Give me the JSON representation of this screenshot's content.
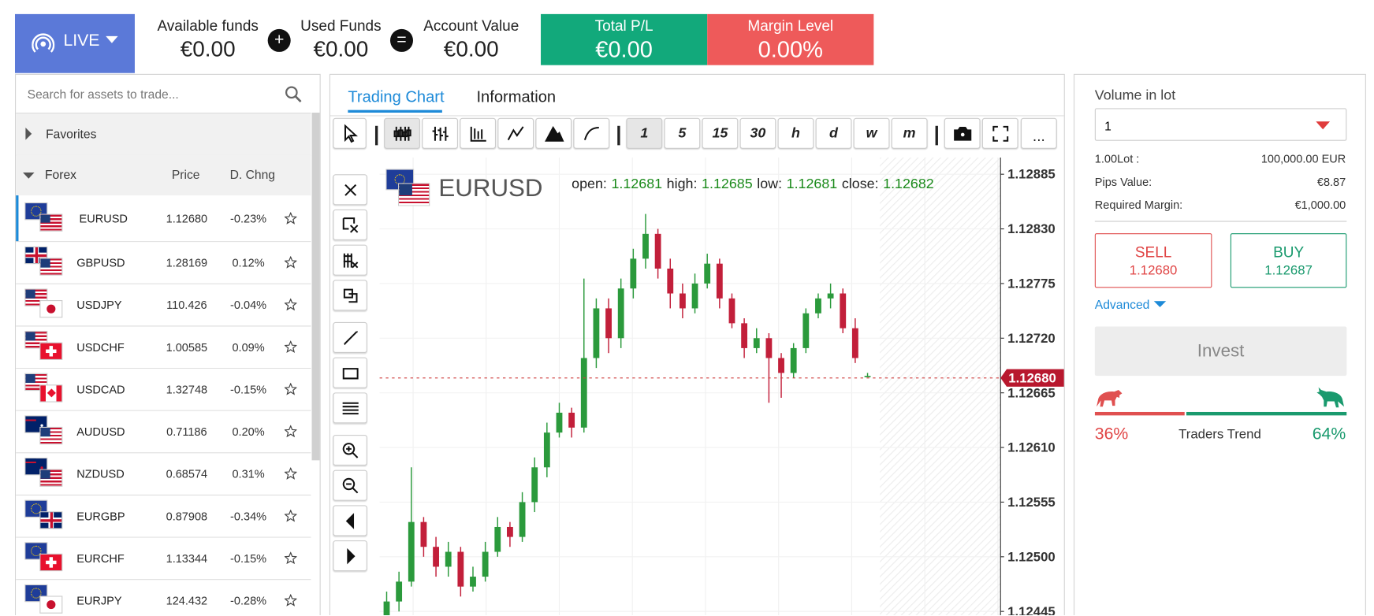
{
  "header": {
    "mode": "LIVE",
    "available_funds": {
      "label": "Available funds",
      "value": "€0.00"
    },
    "plus": "+",
    "used_funds": {
      "label": "Used Funds",
      "value": "€0.00"
    },
    "equals": "=",
    "account_value": {
      "label": "Account Value",
      "value": "€0.00"
    },
    "total_pl": {
      "label": "Total P/L",
      "value": "€0.00"
    },
    "margin_level": {
      "label": "Margin Level",
      "value": "0.00%"
    }
  },
  "sidebar": {
    "search_placeholder": "Search for assets to trade...",
    "favorites": "Favorites",
    "group": {
      "label": "Forex",
      "columns": [
        "Price",
        "D. Chng"
      ]
    },
    "assets": [
      {
        "symbol": "EURUSD",
        "price": "1.12680",
        "change": "-0.23%"
      },
      {
        "symbol": "GBPUSD",
        "price": "1.28169",
        "change": "0.12%"
      },
      {
        "symbol": "USDJPY",
        "price": "110.426",
        "change": "-0.04%"
      },
      {
        "symbol": "USDCHF",
        "price": "1.00585",
        "change": "0.09%"
      },
      {
        "symbol": "USDCAD",
        "price": "1.32748",
        "change": "-0.15%"
      },
      {
        "symbol": "AUDUSD",
        "price": "0.71186",
        "change": "0.20%"
      },
      {
        "symbol": "NZDUSD",
        "price": "0.68574",
        "change": "0.31%"
      },
      {
        "symbol": "EURGBP",
        "price": "0.87908",
        "change": "-0.34%"
      },
      {
        "symbol": "EURCHF",
        "price": "1.13344",
        "change": "-0.15%"
      },
      {
        "symbol": "EURJPY",
        "price": "124.432",
        "change": "-0.28%"
      }
    ]
  },
  "chart_panel": {
    "tabs": [
      "Trading Chart",
      "Information"
    ],
    "timeframes": [
      "1",
      "5",
      "15",
      "30",
      "h",
      "d",
      "w",
      "m"
    ],
    "more": "...",
    "symbol": "EURUSD",
    "ohlc_labels": [
      "open:",
      "high:",
      "low:",
      "close:"
    ]
  },
  "chart_data": {
    "type": "candlestick",
    "open": [
      1.1244,
      1.12455,
      1.12475,
      1.12535,
      1.1251,
      1.1249,
      1.12505,
      1.1247,
      1.1248,
      1.12505,
      1.1253,
      1.1252,
      1.12555,
      1.1259,
      1.12625,
      1.12645,
      1.1263,
      1.127,
      1.1275,
      1.1272,
      1.1277,
      1.128,
      1.12825,
      1.1279,
      1.12765,
      1.1275,
      1.12775,
      1.12795,
      1.1276,
      1.12735,
      1.1271,
      1.1272,
      1.127,
      1.12685,
      1.1271,
      1.12745,
      1.1276,
      1.12765,
      1.1273,
      1.12681
    ],
    "high": [
      1.12465,
      1.12485,
      1.1259,
      1.1254,
      1.1252,
      1.12515,
      1.1251,
      1.1249,
      1.12515,
      1.1254,
      1.12535,
      1.12565,
      1.126,
      1.12635,
      1.12655,
      1.1265,
      1.1278,
      1.1276,
      1.1276,
      1.1278,
      1.1281,
      1.12845,
      1.1283,
      1.128,
      1.12775,
      1.12785,
      1.12805,
      1.128,
      1.12765,
      1.1274,
      1.1273,
      1.12725,
      1.12705,
      1.12715,
      1.1275,
      1.12765,
      1.12775,
      1.1277,
      1.1274,
      1.12685
    ],
    "low": [
      1.12435,
      1.12445,
      1.1247,
      1.125,
      1.1248,
      1.1248,
      1.1246,
      1.12465,
      1.12475,
      1.125,
      1.1251,
      1.12515,
      1.12545,
      1.1258,
      1.1262,
      1.1262,
      1.12625,
      1.1269,
      1.12705,
      1.1271,
      1.1276,
      1.1279,
      1.1278,
      1.1275,
      1.1274,
      1.12745,
      1.1277,
      1.1275,
      1.1273,
      1.127,
      1.12705,
      1.12655,
      1.1266,
      1.1268,
      1.12705,
      1.1274,
      1.1275,
      1.12725,
      1.12695,
      1.12681
    ],
    "close": [
      1.12455,
      1.12475,
      1.12535,
      1.1251,
      1.1249,
      1.12505,
      1.1247,
      1.1248,
      1.12505,
      1.1253,
      1.1252,
      1.12555,
      1.1259,
      1.12625,
      1.12645,
      1.1263,
      1.127,
      1.1275,
      1.1272,
      1.1277,
      1.128,
      1.12825,
      1.1279,
      1.12765,
      1.1275,
      1.12775,
      1.12795,
      1.1276,
      1.12735,
      1.1271,
      1.1272,
      1.127,
      1.12685,
      1.1271,
      1.12745,
      1.1276,
      1.12765,
      1.1273,
      1.127,
      1.12682
    ],
    "ylim": [
      1.12435,
      1.129
    ],
    "yticks": [
      1.12885,
      {
        "value": 1.1283,
        "label": "1.12830"
      },
      1.12775,
      {
        "value": 1.1272,
        "label": "1.12720"
      },
      1.12665,
      {
        "value": 1.1261,
        "label": "1.12610"
      },
      1.12555,
      {
        "value": 1.125,
        "label": "1.12500"
      },
      1.12445
    ],
    "last_price": {
      "value": 1.1268,
      "label": "1.12680"
    },
    "grid": true,
    "up_color": "#2b9a3c",
    "down_color": "#c21f3a"
  },
  "order_panel": {
    "volume_label": "Volume in lot",
    "volume": "1",
    "details": [
      [
        "1.00Lot :",
        "100,000.00 EUR"
      ],
      [
        "Pips Value:",
        "€8.87"
      ],
      [
        "Required Margin:",
        "€1,000.00"
      ]
    ],
    "sell": {
      "label": "SELL",
      "price": "1.12680"
    },
    "buy": {
      "label": "BUY",
      "price": "1.12687"
    },
    "advanced": "Advanced",
    "invest": "Invest",
    "trend": {
      "label": "Traders Trend",
      "sellers": {
        "value": 36,
        "label": "36%"
      },
      "buyers": {
        "value": 64,
        "label": "64%"
      }
    }
  }
}
